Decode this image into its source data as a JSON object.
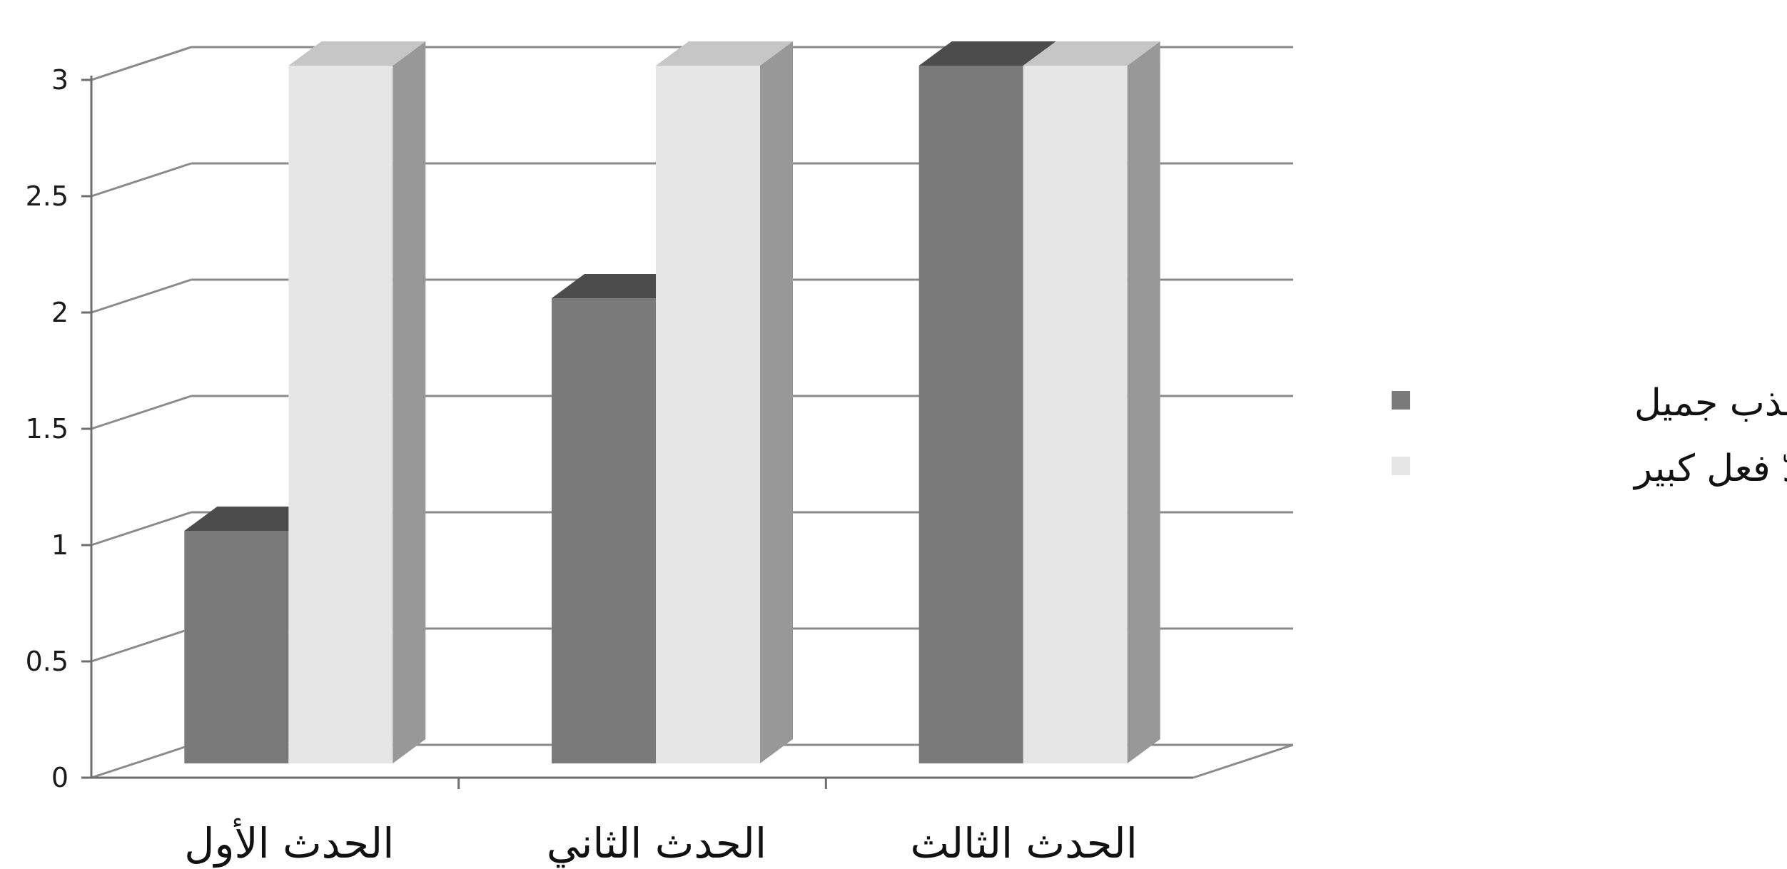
{
  "chart_data": {
    "type": "bar",
    "style": "3d-clustered-column",
    "title": "",
    "xlabel": "",
    "ylabel": "",
    "categories": [
      "الحدث الأول",
      "الحدث الثاني",
      "الحدث الثالث"
    ],
    "series": [
      {
        "name": "سلوك مهذب جميل",
        "values": [
          1,
          2,
          3
        ],
        "color": "#7a7a7a"
      },
      {
        "name": "ردّ فعل كبير",
        "values": [
          3,
          3,
          3
        ],
        "color": "#e6e6e6"
      }
    ],
    "ylim": [
      0,
      3
    ],
    "yticks": [
      "0",
      "0.5",
      "1",
      "1.5",
      "2",
      "2.5",
      "3"
    ],
    "grid": true,
    "legend_position": "right"
  }
}
